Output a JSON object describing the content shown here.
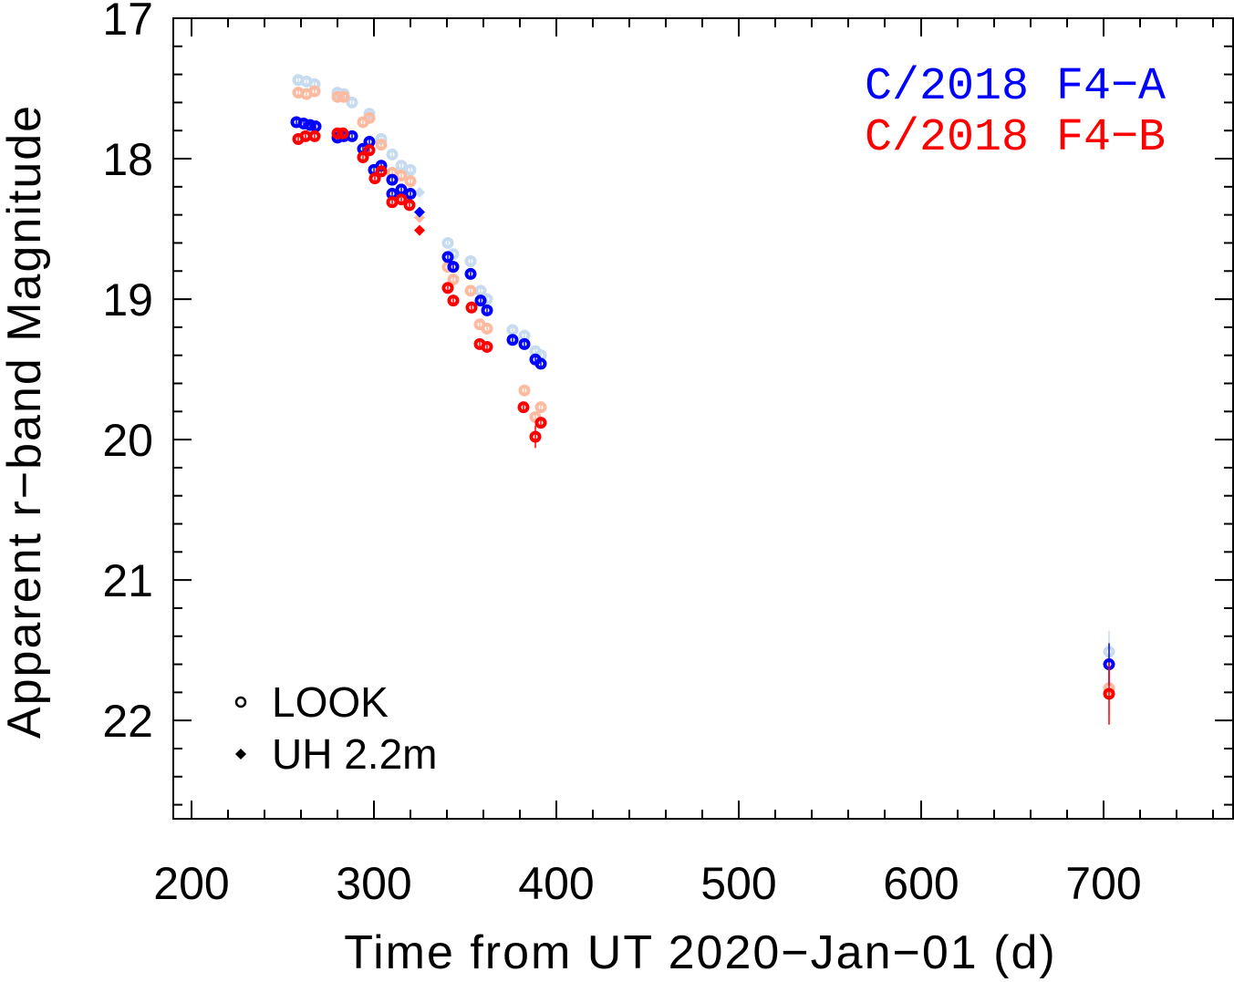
{
  "chart_data": {
    "type": "scatter",
    "title": "",
    "xlabel": "Time from UT 2020−Jan−01 (d)",
    "ylabel": "Apparent r−band Magnitude",
    "xlim": [
      190,
      771
    ],
    "ylim": [
      22.7,
      17.0
    ],
    "y_inverted": true,
    "xticks": [
      200,
      300,
      400,
      500,
      600,
      700
    ],
    "yticks": [
      17,
      18,
      19,
      20,
      21,
      22
    ],
    "xtick_labels": [
      "200",
      "300",
      "400",
      "500",
      "600",
      "700"
    ],
    "ytick_labels": [
      "17",
      "18",
      "19",
      "20",
      "21",
      "22"
    ],
    "grid": false,
    "legend_series": {
      "position": "top-right",
      "entries": [
        {
          "label": "C/2018 F4−A",
          "color": "#0000ff"
        },
        {
          "label": "C/2018 F4−B",
          "color": "#ff0000"
        }
      ]
    },
    "legend_symbols": {
      "position": "bottom-left",
      "entries": [
        {
          "label": "LOOK",
          "marker": "circle"
        },
        {
          "label": "UH 2.2m",
          "marker": "diamond"
        }
      ]
    },
    "series": [
      {
        "name": "C/2018 F4-A (light)",
        "color": "#c6dbef",
        "look": [
          [
            258.5,
            17.44
          ],
          [
            263,
            17.45
          ],
          [
            267.5,
            17.47
          ],
          [
            280,
            17.53
          ],
          [
            283.5,
            17.54
          ],
          [
            288,
            17.6
          ],
          [
            297.5,
            17.68
          ],
          [
            304,
            17.86
          ],
          [
            310,
            17.97
          ],
          [
            315,
            18.05
          ],
          [
            320,
            18.08
          ],
          [
            340.5,
            18.6
          ],
          [
            343.5,
            18.68
          ],
          [
            353,
            18.73
          ],
          [
            358.5,
            18.94
          ],
          [
            362,
            19.0
          ],
          [
            376,
            19.22
          ],
          [
            382.5,
            19.26
          ],
          [
            388.5,
            19.37
          ],
          [
            391.5,
            19.4
          ],
          [
            703,
            21.51,
            0.15
          ]
        ],
        "uh": [
          [
            325,
            18.24
          ]
        ]
      },
      {
        "name": "C/2018 F4-B (light)",
        "color": "#fcbba1",
        "look": [
          [
            258.5,
            17.53
          ],
          [
            263,
            17.54
          ],
          [
            267.5,
            17.52
          ],
          [
            280,
            17.56
          ],
          [
            283.5,
            17.56
          ],
          [
            294,
            17.74
          ],
          [
            297.5,
            17.71
          ],
          [
            304,
            17.9
          ],
          [
            310,
            18.1
          ],
          [
            315,
            18.12
          ],
          [
            320,
            18.16
          ],
          [
            340.5,
            18.77
          ],
          [
            343.5,
            18.86
          ],
          [
            353,
            18.94
          ],
          [
            358,
            19.18
          ],
          [
            362,
            19.21
          ],
          [
            382.5,
            19.65
          ],
          [
            388.5,
            19.84
          ],
          [
            391.5,
            19.77
          ],
          [
            703,
            21.77,
            0.2
          ]
        ],
        "uh": [
          [
            325,
            18.42
          ]
        ]
      },
      {
        "name": "C/2018 F4-A",
        "color": "#0000ff",
        "look": [
          [
            257.5,
            17.74
          ],
          [
            261.5,
            17.75
          ],
          [
            265,
            17.76
          ],
          [
            268,
            17.77
          ],
          [
            280,
            17.85
          ],
          [
            283.5,
            17.84
          ],
          [
            288,
            17.84
          ],
          [
            294,
            17.93
          ],
          [
            297.5,
            17.88
          ],
          [
            300,
            18.08
          ],
          [
            304,
            18.05
          ],
          [
            310,
            18.15
          ],
          [
            310,
            18.25
          ],
          [
            315,
            18.22
          ],
          [
            320,
            18.25
          ],
          [
            340.5,
            18.7
          ],
          [
            343.5,
            18.77
          ],
          [
            353,
            18.82
          ],
          [
            358.5,
            19.01
          ],
          [
            362,
            19.08
          ],
          [
            376,
            19.29
          ],
          [
            382.5,
            19.32
          ],
          [
            388.5,
            19.43
          ],
          [
            391.5,
            19.46
          ],
          [
            703,
            21.6,
            0.15
          ]
        ],
        "uh": [
          [
            325,
            18.38
          ]
        ]
      },
      {
        "name": "C/2018 F4-B",
        "color": "#ff0000",
        "look": [
          [
            258.5,
            17.86
          ],
          [
            262.5,
            17.84
          ],
          [
            267.5,
            17.84
          ],
          [
            280,
            17.82
          ],
          [
            283,
            17.82
          ],
          [
            294,
            17.99
          ],
          [
            297.5,
            17.94
          ],
          [
            300.5,
            18.14
          ],
          [
            304,
            18.09
          ],
          [
            310,
            18.31
          ],
          [
            315,
            18.29
          ],
          [
            319.5,
            18.33
          ],
          [
            340.5,
            18.92
          ],
          [
            343.5,
            19.01
          ],
          [
            353.5,
            19.06
          ],
          [
            358,
            19.32
          ],
          [
            362,
            19.34
          ],
          [
            382,
            19.77
          ],
          [
            388.5,
            19.98,
            0.08
          ],
          [
            391.5,
            19.88
          ],
          [
            703,
            21.81,
            0.22
          ]
        ],
        "uh": [
          [
            325,
            18.51
          ]
        ]
      }
    ]
  }
}
